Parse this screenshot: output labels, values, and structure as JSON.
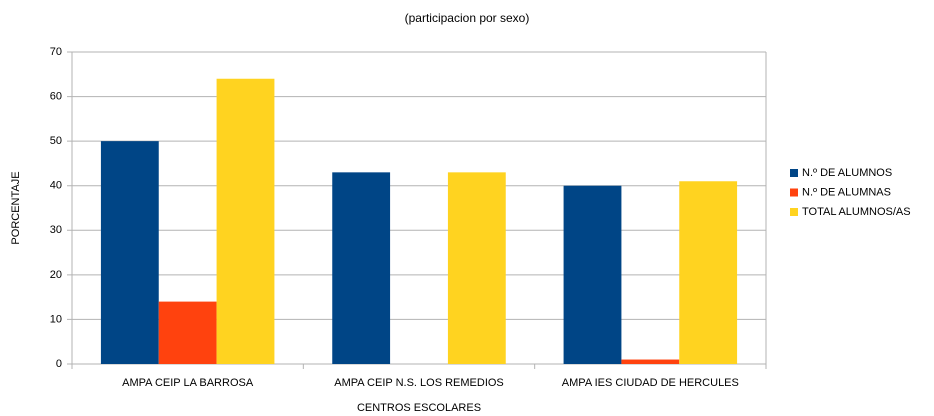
{
  "chart_data": {
    "type": "bar",
    "title": "(participacion por sexo)",
    "y_label": "PORCENTAJE",
    "x_label": "CENTROS ESCOLARES",
    "categories": [
      "AMPA CEIP LA BARROSA",
      "AMPA CEIP N.S. LOS REMEDIOS",
      "AMPA IES CIUDAD DE HERCULES"
    ],
    "series": [
      {
        "name": "N.º DE ALUMNOS",
        "color": "#004586",
        "values": [
          50,
          43,
          40
        ]
      },
      {
        "name": "N.º DE ALUMNAS",
        "color": "#ff420e",
        "values": [
          14,
          0,
          1
        ]
      },
      {
        "name": "TOTAL ALUMNOS/AS",
        "color": "#ffd320",
        "values": [
          64,
          43,
          41
        ]
      }
    ],
    "ylim": [
      0,
      70
    ],
    "yticks": [
      0,
      10,
      20,
      30,
      40,
      50,
      60,
      70
    ],
    "grid": true,
    "legend": "right"
  }
}
